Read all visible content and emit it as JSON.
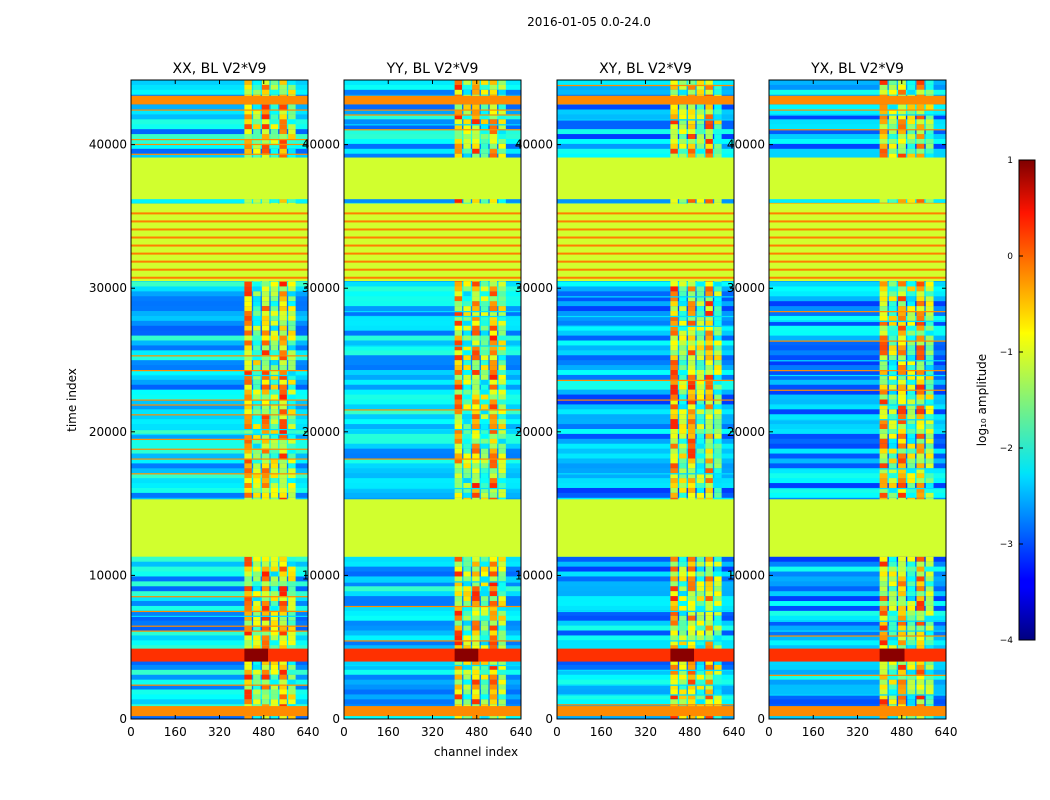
{
  "figure": {
    "suptitle": "2016-01-05 0.0-24.0"
  },
  "chart_data": {
    "type": "heatmap",
    "xlabel": "channel index",
    "ylabel": "time index",
    "xlim": [
      0,
      640
    ],
    "ylim": [
      0,
      44500
    ],
    "xticks": [
      0,
      160,
      320,
      480,
      640
    ],
    "yticks": [
      0,
      10000,
      20000,
      30000,
      40000
    ],
    "panels": [
      {
        "title": "XX, BL V2*V9",
        "bright_band": [
          410,
          600
        ]
      },
      {
        "title": "YY, BL V2*V9",
        "bright_band": [
          400,
          590
        ]
      },
      {
        "title": "XY, BL V2*V9",
        "bright_band": [
          410,
          600
        ]
      },
      {
        "title": "YX, BL V2*V9",
        "bright_band": [
          400,
          600
        ]
      }
    ],
    "colorbar": {
      "label": "log₁₀ amplitude",
      "range": [
        -4,
        1
      ],
      "ticks": [
        1,
        0,
        -1,
        -2,
        -3,
        -4
      ],
      "tick_labels": [
        "1",
        "0",
        "−1",
        "−2",
        "−3",
        "−4"
      ],
      "colormap": "jet"
    },
    "flagged_time_ranges": [
      [
        11300,
        15300
      ],
      [
        30500,
        35900
      ],
      [
        36200,
        39100
      ]
    ],
    "strong_rfi_time_range": [
      4000,
      4900
    ]
  }
}
